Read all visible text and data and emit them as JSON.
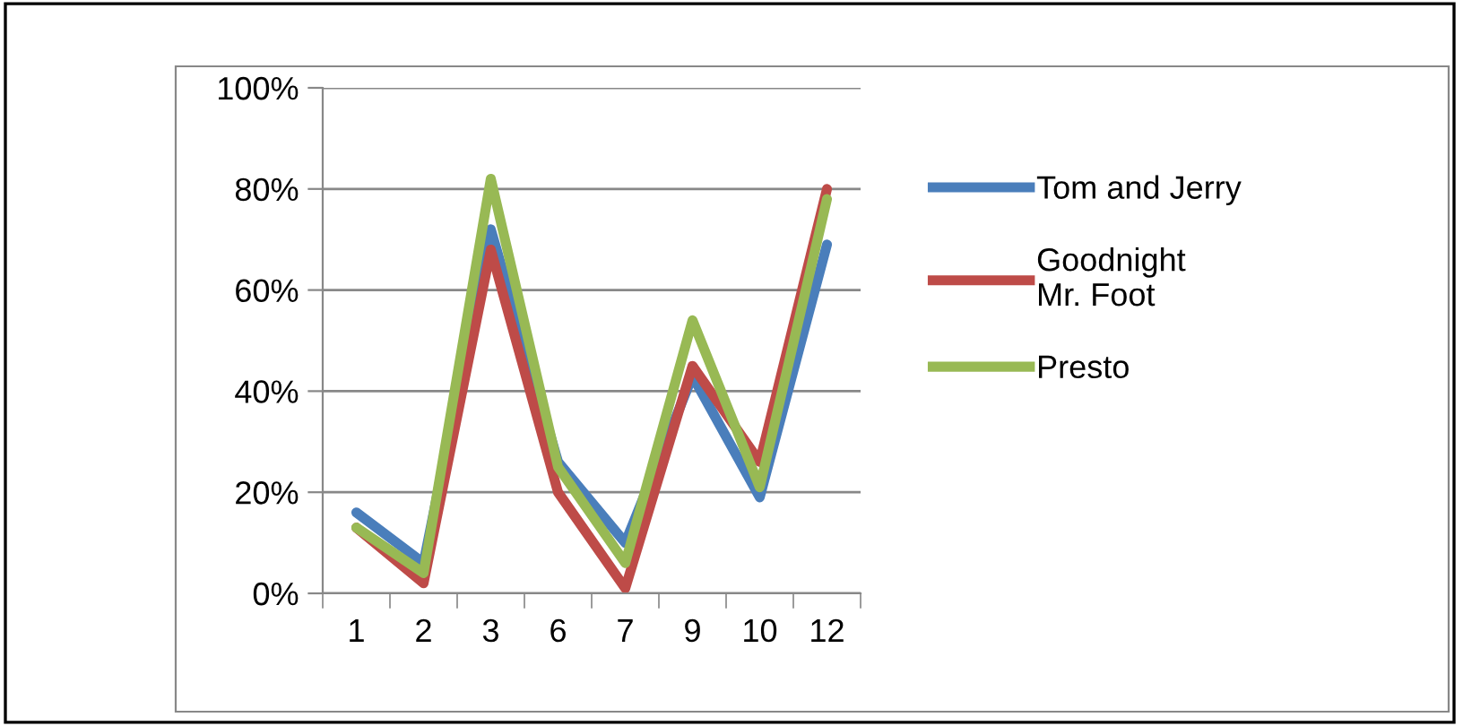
{
  "chart_data": {
    "type": "line",
    "categories": [
      "1",
      "2",
      "3",
      "6",
      "7",
      "9",
      "10",
      "12"
    ],
    "series": [
      {
        "name": "Tom and Jerry",
        "color": "#4a7ebb",
        "values": [
          16,
          6,
          72,
          26,
          10,
          43,
          19,
          69
        ]
      },
      {
        "name": "Goodnight\nMr. Foot",
        "color": "#be4b48",
        "values": [
          13,
          2,
          68,
          20,
          1,
          45,
          26,
          80
        ]
      },
      {
        "name": "Presto",
        "color": "#98b954",
        "values": [
          13,
          4,
          82,
          25,
          6,
          54,
          21,
          78
        ]
      }
    ],
    "ylim": [
      0,
      100
    ],
    "yticks": [
      {
        "value": 0,
        "label": "0%"
      },
      {
        "value": 20,
        "label": "20%"
      },
      {
        "value": 40,
        "label": "40%"
      },
      {
        "value": 60,
        "label": "60%"
      },
      {
        "value": 80,
        "label": "80%"
      },
      {
        "value": 100,
        "label": "100%"
      }
    ],
    "grid": "y",
    "legend": "right",
    "marker": "none",
    "line_style": "solid"
  }
}
